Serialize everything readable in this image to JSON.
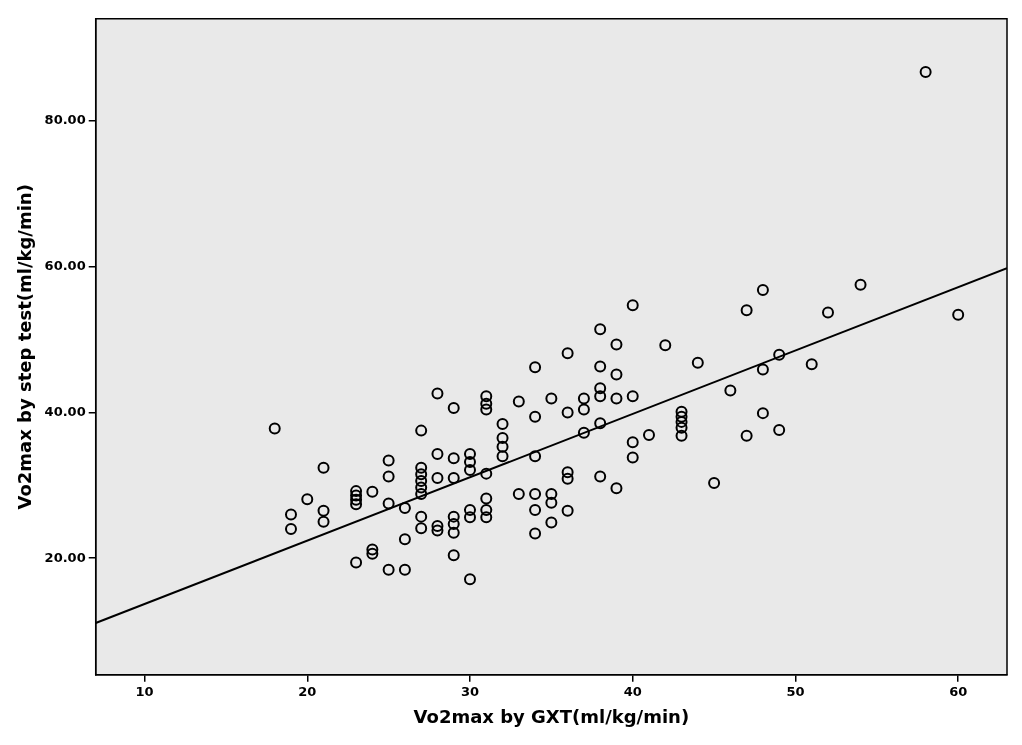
{
  "chart_data": {
    "type": "scatter",
    "xlabel": "Vo2max by GXT(ml/kg/min)",
    "ylabel": "Vo2max by step test(ml/kg/min)",
    "xlim": [
      7,
      63
    ],
    "ylim": [
      4,
      94
    ],
    "xticks": [
      10,
      20,
      30,
      40,
      50,
      60
    ],
    "yticks": [
      {
        "value": 20,
        "label": "20.00"
      },
      {
        "value": 40,
        "label": "40.00"
      },
      {
        "value": 60,
        "label": "60.00"
      },
      {
        "value": 80,
        "label": "80.00"
      }
    ],
    "grid": false,
    "legend": false,
    "series": [
      {
        "type": "scatter",
        "color": "#000000",
        "marker": "circle",
        "x": [
          18,
          19,
          19,
          20,
          21,
          21,
          21,
          23,
          23,
          23,
          23,
          23,
          24,
          24,
          24,
          25,
          25,
          25,
          25,
          26,
          26,
          26,
          27,
          27,
          27,
          27,
          27,
          27,
          27,
          27,
          28,
          28,
          28,
          28,
          28,
          29,
          29,
          29,
          29,
          29,
          29,
          29,
          30,
          30,
          30,
          30,
          30,
          30,
          31,
          31,
          31,
          31,
          31,
          31,
          31,
          32,
          32,
          32,
          32,
          33,
          33,
          34,
          34,
          34,
          34,
          34,
          34,
          35,
          35,
          35,
          35,
          36,
          36,
          36,
          36,
          36,
          37,
          37,
          37,
          38,
          38,
          38,
          38,
          38,
          38,
          39,
          39,
          39,
          39,
          40,
          40,
          40,
          40,
          41,
          42,
          43,
          43,
          43,
          43,
          43,
          44,
          45,
          46,
          47,
          47,
          48,
          48,
          48,
          49,
          49,
          51,
          52,
          54,
          58,
          60
        ],
        "values": [
          37.8,
          26.0,
          24.0,
          28.1,
          32.4,
          26.5,
          25.0,
          29.2,
          28.6,
          28.0,
          27.4,
          19.4,
          29.1,
          21.2,
          20.6,
          33.4,
          31.2,
          27.5,
          18.4,
          26.9,
          22.6,
          18.4,
          37.5,
          32.4,
          31.5,
          30.6,
          29.7,
          28.8,
          25.7,
          24.1,
          42.6,
          34.3,
          31.0,
          24.4,
          23.8,
          40.6,
          33.7,
          31.0,
          25.7,
          24.7,
          23.5,
          20.4,
          34.3,
          33.2,
          32.1,
          26.6,
          25.6,
          17.1,
          42.2,
          41.2,
          40.4,
          31.6,
          28.2,
          26.6,
          25.6,
          38.4,
          36.5,
          35.3,
          34.0,
          41.5,
          28.8,
          46.2,
          39.4,
          34.0,
          26.6,
          23.4,
          28.8,
          41.9,
          28.8,
          27.6,
          24.9,
          48.1,
          40.0,
          31.8,
          30.9,
          26.5,
          41.9,
          40.4,
          37.2,
          51.4,
          46.3,
          43.3,
          42.2,
          38.5,
          31.2,
          49.3,
          45.2,
          41.9,
          29.6,
          54.7,
          42.2,
          35.9,
          33.8,
          36.9,
          49.2,
          40.1,
          39.4,
          38.7,
          37.9,
          36.8,
          46.8,
          30.3,
          43.0,
          54.0,
          36.8,
          56.8,
          45.9,
          39.9,
          47.9,
          37.6,
          46.6,
          53.7,
          57.5,
          86.7,
          53.4
        ]
      },
      {
        "type": "line",
        "color": "#000000",
        "marker": "none",
        "line_style": "solid",
        "x": [
          7,
          63
        ],
        "values": [
          11.1,
          59.8
        ]
      }
    ]
  }
}
